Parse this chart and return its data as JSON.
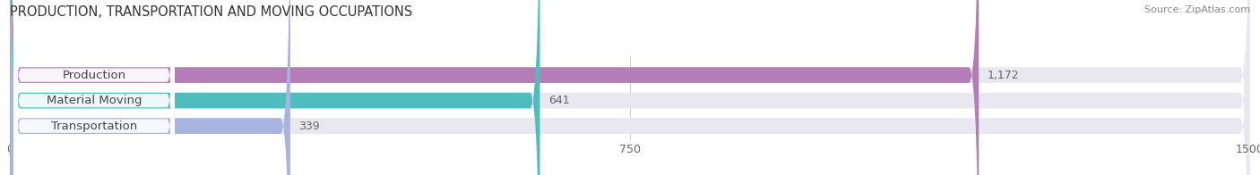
{
  "title": "PRODUCTION, TRANSPORTATION AND MOVING OCCUPATIONS",
  "source": "Source: ZipAtlas.com",
  "categories": [
    "Production",
    "Material Moving",
    "Transportation"
  ],
  "values": [
    1172,
    641,
    339
  ],
  "bar_colors": [
    "#b57db8",
    "#4dbdbd",
    "#a8b4e0"
  ],
  "bar_labels": [
    "1,172",
    "641",
    "339"
  ],
  "xlim": [
    0,
    1500
  ],
  "xticks": [
    0,
    750,
    1500
  ],
  "figsize": [
    14.06,
    1.96
  ],
  "dpi": 100,
  "bg_color": "#ffffff",
  "bar_bg_color": "#e8e8ee",
  "title_fontsize": 10.5,
  "label_fontsize": 9.5,
  "value_fontsize": 9,
  "tick_fontsize": 9,
  "source_fontsize": 8
}
